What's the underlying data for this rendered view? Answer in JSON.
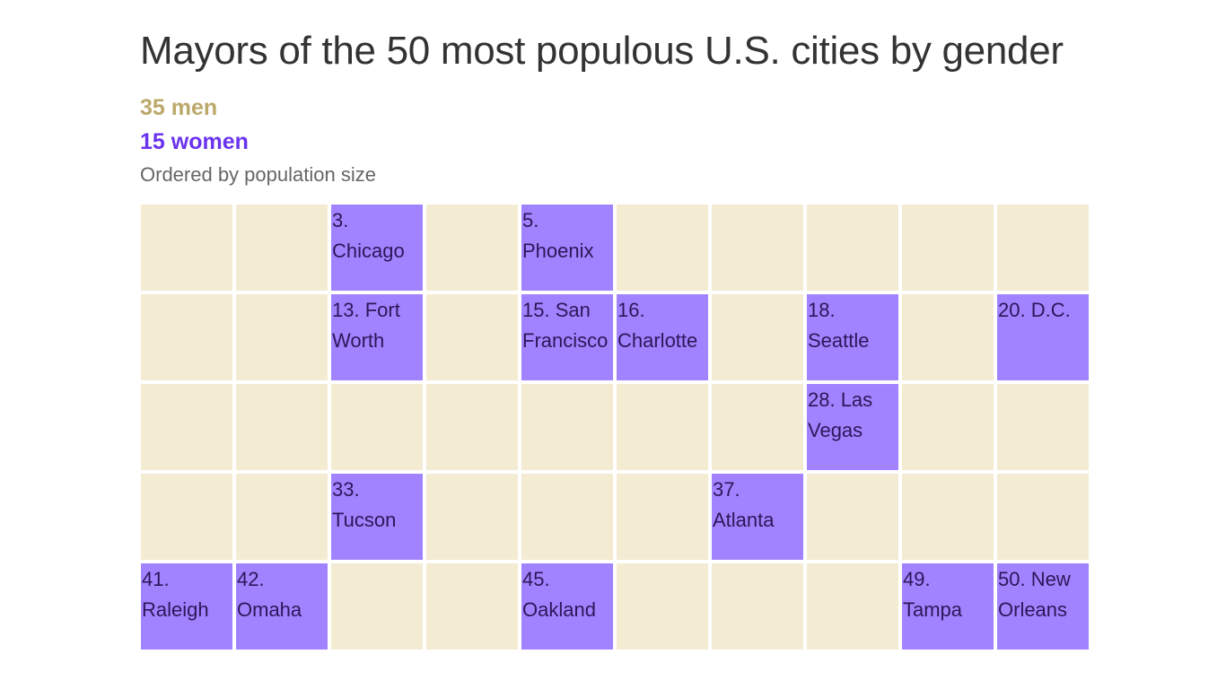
{
  "title": "Mayors of the 50 most populous U.S. cities by gender",
  "legend": {
    "men": "35 men",
    "women": "15 women"
  },
  "subtitle": "Ordered by population size",
  "colors": {
    "men": "#f4ebd3",
    "women": "#a283ff",
    "men_text": "#bba96b",
    "women_text": "#6a33ee",
    "label_text": "#2e1659"
  },
  "chart_data": {
    "type": "table",
    "columns": 10,
    "rows": 5,
    "order": "rank by population, row-major",
    "cells": [
      {
        "rank": 1,
        "gender": "man",
        "label": ""
      },
      {
        "rank": 2,
        "gender": "man",
        "label": ""
      },
      {
        "rank": 3,
        "gender": "woman",
        "label": "3. Chicago"
      },
      {
        "rank": 4,
        "gender": "man",
        "label": ""
      },
      {
        "rank": 5,
        "gender": "woman",
        "label": "5. Phoenix"
      },
      {
        "rank": 6,
        "gender": "man",
        "label": ""
      },
      {
        "rank": 7,
        "gender": "man",
        "label": ""
      },
      {
        "rank": 8,
        "gender": "man",
        "label": ""
      },
      {
        "rank": 9,
        "gender": "man",
        "label": ""
      },
      {
        "rank": 10,
        "gender": "man",
        "label": ""
      },
      {
        "rank": 11,
        "gender": "man",
        "label": ""
      },
      {
        "rank": 12,
        "gender": "man",
        "label": ""
      },
      {
        "rank": 13,
        "gender": "woman",
        "label": "13. Fort Worth"
      },
      {
        "rank": 14,
        "gender": "man",
        "label": ""
      },
      {
        "rank": 15,
        "gender": "woman",
        "label": "15. San Francisco"
      },
      {
        "rank": 16,
        "gender": "woman",
        "label": "16. Charlotte"
      },
      {
        "rank": 17,
        "gender": "man",
        "label": ""
      },
      {
        "rank": 18,
        "gender": "woman",
        "label": "18. Seattle"
      },
      {
        "rank": 19,
        "gender": "man",
        "label": ""
      },
      {
        "rank": 20,
        "gender": "woman",
        "label": "20. D.C."
      },
      {
        "rank": 21,
        "gender": "man",
        "label": ""
      },
      {
        "rank": 22,
        "gender": "man",
        "label": ""
      },
      {
        "rank": 23,
        "gender": "man",
        "label": ""
      },
      {
        "rank": 24,
        "gender": "man",
        "label": ""
      },
      {
        "rank": 25,
        "gender": "man",
        "label": ""
      },
      {
        "rank": 26,
        "gender": "man",
        "label": ""
      },
      {
        "rank": 27,
        "gender": "man",
        "label": ""
      },
      {
        "rank": 28,
        "gender": "woman",
        "label": "28. Las Vegas"
      },
      {
        "rank": 29,
        "gender": "man",
        "label": ""
      },
      {
        "rank": 30,
        "gender": "man",
        "label": ""
      },
      {
        "rank": 31,
        "gender": "man",
        "label": ""
      },
      {
        "rank": 32,
        "gender": "man",
        "label": ""
      },
      {
        "rank": 33,
        "gender": "woman",
        "label": "33. Tucson"
      },
      {
        "rank": 34,
        "gender": "man",
        "label": ""
      },
      {
        "rank": 35,
        "gender": "man",
        "label": ""
      },
      {
        "rank": 36,
        "gender": "man",
        "label": ""
      },
      {
        "rank": 37,
        "gender": "woman",
        "label": "37. Atlanta"
      },
      {
        "rank": 38,
        "gender": "man",
        "label": ""
      },
      {
        "rank": 39,
        "gender": "man",
        "label": ""
      },
      {
        "rank": 40,
        "gender": "man",
        "label": ""
      },
      {
        "rank": 41,
        "gender": "woman",
        "label": "41. Raleigh"
      },
      {
        "rank": 42,
        "gender": "woman",
        "label": "42. Omaha"
      },
      {
        "rank": 43,
        "gender": "man",
        "label": ""
      },
      {
        "rank": 44,
        "gender": "man",
        "label": ""
      },
      {
        "rank": 45,
        "gender": "woman",
        "label": "45. Oakland"
      },
      {
        "rank": 46,
        "gender": "man",
        "label": ""
      },
      {
        "rank": 47,
        "gender": "man",
        "label": ""
      },
      {
        "rank": 48,
        "gender": "man",
        "label": ""
      },
      {
        "rank": 49,
        "gender": "woman",
        "label": "49. Tampa"
      },
      {
        "rank": 50,
        "gender": "woman",
        "label": "50. New Orleans"
      }
    ]
  }
}
